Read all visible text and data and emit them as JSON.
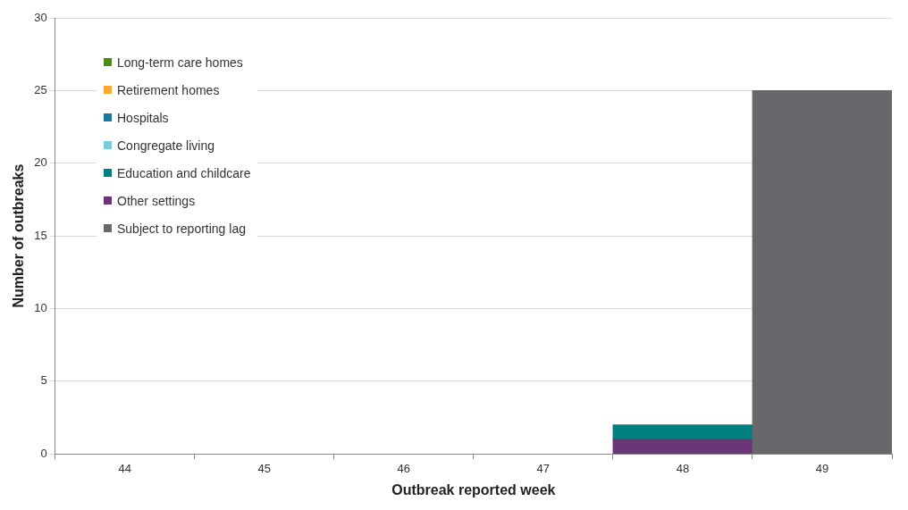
{
  "chart_data": {
    "type": "bar",
    "stacked": true,
    "xlabel": "Outbreak reported week",
    "ylabel": "Number of outbreaks",
    "categories": [
      "44",
      "45",
      "46",
      "47",
      "48",
      "49"
    ],
    "series": [
      {
        "name": "Subject to reporting lag",
        "color": "#68686c",
        "values": [
          null,
          null,
          null,
          null,
          null,
          25
        ]
      },
      {
        "name": "Other settings",
        "color": "#6a3678",
        "values": [
          null,
          null,
          null,
          null,
          1,
          null
        ]
      },
      {
        "name": "Education and childcare",
        "color": "#007f7f",
        "values": [
          null,
          null,
          null,
          null,
          1,
          null
        ]
      },
      {
        "name": "Congregate living",
        "color": "#7ccbdc",
        "values": [
          null,
          null,
          null,
          null,
          null,
          null
        ]
      },
      {
        "name": "Hospitals",
        "color": "#1b77a0",
        "values": [
          null,
          null,
          null,
          null,
          null,
          null
        ]
      },
      {
        "name": "Retirement homes",
        "color": "#f7a833",
        "values": [
          null,
          null,
          null,
          null,
          null,
          null
        ]
      },
      {
        "name": "Long-term care homes",
        "color": "#4e8a1c",
        "values": [
          null,
          null,
          null,
          null,
          null,
          null
        ]
      }
    ],
    "ylim": [
      0,
      30
    ],
    "yticks": [
      0,
      5,
      10,
      15,
      20,
      25,
      30
    ],
    "grid": "y",
    "legend": "top left"
  }
}
